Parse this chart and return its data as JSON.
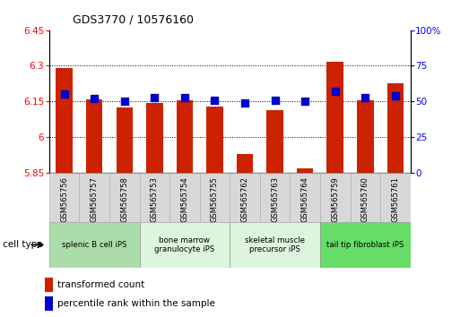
{
  "title": "GDS3770 / 10576160",
  "samples": [
    "GSM565756",
    "GSM565757",
    "GSM565758",
    "GSM565753",
    "GSM565754",
    "GSM565755",
    "GSM565762",
    "GSM565763",
    "GSM565764",
    "GSM565759",
    "GSM565760",
    "GSM565761"
  ],
  "red_values": [
    6.29,
    6.16,
    6.125,
    6.145,
    6.155,
    6.128,
    5.93,
    6.115,
    5.87,
    6.315,
    6.155,
    6.225
  ],
  "blue_values": [
    55,
    52,
    50,
    53,
    53,
    51,
    49,
    51,
    50,
    57,
    53,
    54
  ],
  "ylim_left": [
    5.85,
    6.45
  ],
  "ylim_right": [
    0,
    100
  ],
  "yticks_left": [
    5.85,
    6.0,
    6.15,
    6.3,
    6.45
  ],
  "yticks_right": [
    0,
    25,
    50,
    75,
    100
  ],
  "ytick_labels_left": [
    "5.85",
    "6",
    "6.15",
    "6.3",
    "6.45"
  ],
  "ytick_labels_right": [
    "0",
    "25",
    "50",
    "75",
    "100%"
  ],
  "cell_types": [
    {
      "label": "splenic B cell iPS",
      "start": 0,
      "end": 3,
      "color": "#aaddaa"
    },
    {
      "label": "bone marrow\ngranulocyte iPS",
      "start": 3,
      "end": 6,
      "color": "#ddf5dd"
    },
    {
      "label": "skeletal muscle\nprecursor iPS",
      "start": 6,
      "end": 9,
      "color": "#ddf5dd"
    },
    {
      "label": "tail tip fibroblast iPS",
      "start": 9,
      "end": 12,
      "color": "#66dd66"
    }
  ],
  "bar_color": "#cc2200",
  "dot_color": "#0000cc",
  "legend_red": "transformed count",
  "legend_blue": "percentile rank within the sample",
  "cell_type_label": "cell type",
  "bar_width": 0.55,
  "dot_size": 28
}
